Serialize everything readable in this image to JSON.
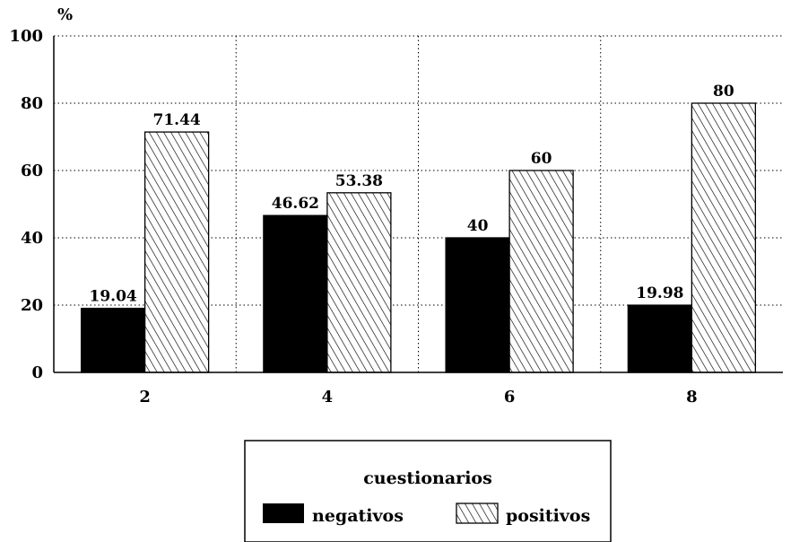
{
  "chart_data": {
    "type": "bar",
    "ylabel": "%",
    "xlabel": "",
    "ylim": [
      0,
      100
    ],
    "yticks": [
      0,
      20,
      40,
      60,
      80,
      100
    ],
    "categories": [
      "2",
      "4",
      "6",
      "8"
    ],
    "grid": true,
    "legend": {
      "title": "cuestionarios",
      "position": "bottom"
    },
    "series": [
      {
        "name": "negativos",
        "values": [
          19.04,
          46.62,
          40,
          19.98
        ],
        "labels": [
          "19.04",
          "46.62",
          "40",
          "19.98"
        ],
        "fill": "solid",
        "color": "#000000"
      },
      {
        "name": "positivos",
        "values": [
          71.44,
          53.38,
          60,
          80
        ],
        "labels": [
          "71.44",
          "53.38",
          "60",
          "80"
        ],
        "fill": "hatched",
        "color": "#000000"
      }
    ]
  }
}
